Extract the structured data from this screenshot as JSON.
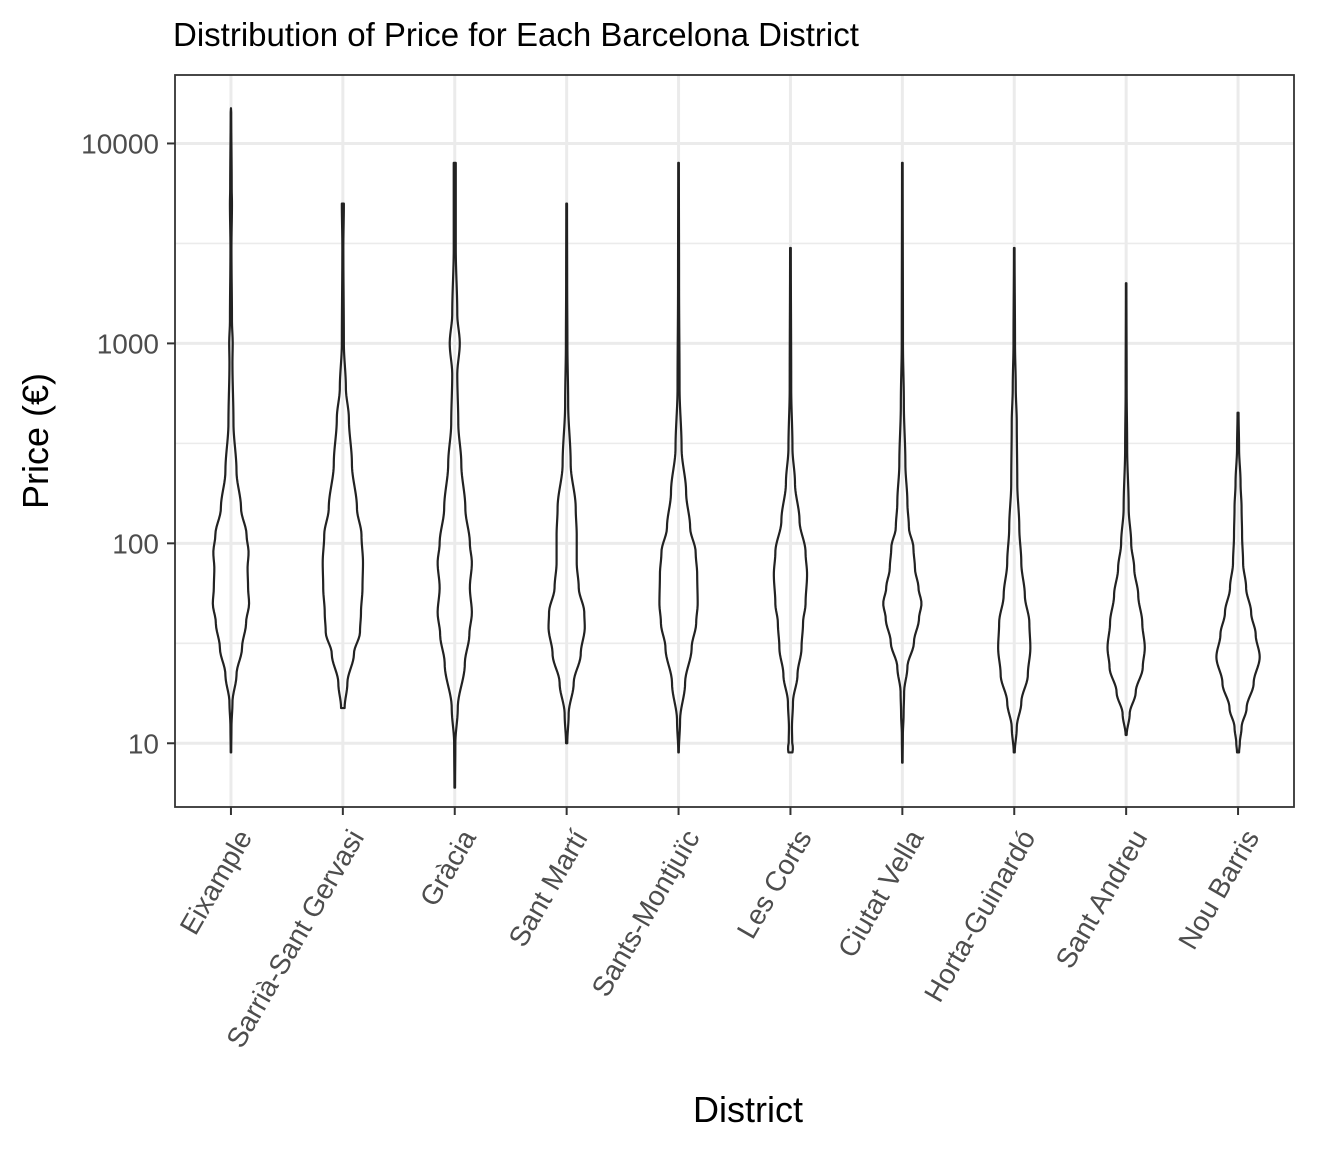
{
  "chart_data": {
    "type": "violin",
    "title": "Distribution of Price for Each Barcelona District",
    "xlabel": "District",
    "ylabel": "Price (€)",
    "y_scale": "log10",
    "ylim": [
      4.8,
      22000
    ],
    "y_ticks": [
      {
        "value": 10,
        "label": "10"
      },
      {
        "value": 100,
        "label": "100"
      },
      {
        "value": 1000,
        "label": "1000"
      },
      {
        "value": 10000,
        "label": "10000"
      }
    ],
    "grid": true,
    "categories": [
      "Eixample",
      "Sarrià-Sant Gervasi",
      "Gràcia",
      "Sant Martí",
      "Sants-Montjuïc",
      "Les Corts",
      "Ciutat Vella",
      "Horta-Guinardó",
      "Sant Andreu",
      "Nou Barris"
    ],
    "series": [
      {
        "category": "Eixample",
        "min": 9,
        "max": 15000,
        "profile": [
          [
            9,
            0.005
          ],
          [
            12,
            0.01
          ],
          [
            16,
            0.03
          ],
          [
            22,
            0.11
          ],
          [
            30,
            0.22
          ],
          [
            40,
            0.3
          ],
          [
            50,
            0.36
          ],
          [
            60,
            0.34
          ],
          [
            75,
            0.33
          ],
          [
            90,
            0.35
          ],
          [
            110,
            0.31
          ],
          [
            150,
            0.2
          ],
          [
            230,
            0.11
          ],
          [
            400,
            0.05
          ],
          [
            800,
            0.03
          ],
          [
            1000,
            0.035
          ],
          [
            1300,
            0.02
          ],
          [
            3000,
            0.01
          ],
          [
            5000,
            0.02
          ],
          [
            6000,
            0.015
          ],
          [
            15000,
            0.005
          ]
        ]
      },
      {
        "category": "Sarrià-Sant Gervasi",
        "min": 15,
        "max": 5000,
        "profile": [
          [
            15,
            0.035
          ],
          [
            20,
            0.09
          ],
          [
            28,
            0.22
          ],
          [
            36,
            0.34
          ],
          [
            45,
            0.36
          ],
          [
            60,
            0.39
          ],
          [
            80,
            0.4
          ],
          [
            110,
            0.37
          ],
          [
            150,
            0.28
          ],
          [
            250,
            0.18
          ],
          [
            420,
            0.12
          ],
          [
            600,
            0.06
          ],
          [
            1000,
            0.02
          ],
          [
            3000,
            0.01
          ],
          [
            5000,
            0.02
          ]
        ]
      },
      {
        "category": "Gràcia",
        "min": 6,
        "max": 8000,
        "profile": [
          [
            6,
            0.006
          ],
          [
            10,
            0.012
          ],
          [
            15,
            0.06
          ],
          [
            25,
            0.2
          ],
          [
            35,
            0.29
          ],
          [
            45,
            0.34
          ],
          [
            60,
            0.3
          ],
          [
            80,
            0.34
          ],
          [
            100,
            0.3
          ],
          [
            150,
            0.21
          ],
          [
            250,
            0.13
          ],
          [
            400,
            0.07
          ],
          [
            700,
            0.05
          ],
          [
            1000,
            0.1
          ],
          [
            1400,
            0.05
          ],
          [
            3000,
            0.02
          ],
          [
            8000,
            0.02
          ]
        ]
      },
      {
        "category": "Sant Martí",
        "min": 10,
        "max": 5000,
        "profile": [
          [
            10,
            0.012
          ],
          [
            14,
            0.04
          ],
          [
            20,
            0.14
          ],
          [
            28,
            0.28
          ],
          [
            38,
            0.36
          ],
          [
            45,
            0.35
          ],
          [
            60,
            0.24
          ],
          [
            80,
            0.2
          ],
          [
            110,
            0.2
          ],
          [
            150,
            0.18
          ],
          [
            250,
            0.08
          ],
          [
            500,
            0.03
          ],
          [
            1000,
            0.015
          ],
          [
            2000,
            0.01
          ],
          [
            5000,
            0.007
          ]
        ]
      },
      {
        "category": "Sants-Montjuïc",
        "min": 9,
        "max": 8000,
        "profile": [
          [
            9,
            0.005
          ],
          [
            13,
            0.03
          ],
          [
            20,
            0.13
          ],
          [
            30,
            0.26
          ],
          [
            40,
            0.35
          ],
          [
            50,
            0.38
          ],
          [
            70,
            0.37
          ],
          [
            90,
            0.34
          ],
          [
            120,
            0.23
          ],
          [
            180,
            0.15
          ],
          [
            300,
            0.06
          ],
          [
            600,
            0.02
          ],
          [
            2000,
            0.01
          ],
          [
            8000,
            0.006
          ]
        ]
      },
      {
        "category": "Les Corts",
        "min": 9,
        "max": 3000,
        "profile": [
          [
            9,
            0.04
          ],
          [
            9.5,
            0.05
          ],
          [
            10,
            0.035
          ],
          [
            12,
            0.03
          ],
          [
            16,
            0.05
          ],
          [
            22,
            0.14
          ],
          [
            30,
            0.22
          ],
          [
            40,
            0.25
          ],
          [
            50,
            0.3
          ],
          [
            70,
            0.33
          ],
          [
            90,
            0.3
          ],
          [
            130,
            0.18
          ],
          [
            200,
            0.09
          ],
          [
            300,
            0.04
          ],
          [
            600,
            0.015
          ],
          [
            3000,
            0.007
          ]
        ]
      },
      {
        "category": "Ciutat Vella",
        "min": 8,
        "max": 8000,
        "profile": [
          [
            8,
            0.005
          ],
          [
            11,
            0.01
          ],
          [
            14,
            0.025
          ],
          [
            18,
            0.035
          ],
          [
            24,
            0.1
          ],
          [
            32,
            0.23
          ],
          [
            42,
            0.33
          ],
          [
            50,
            0.38
          ],
          [
            60,
            0.32
          ],
          [
            75,
            0.25
          ],
          [
            95,
            0.22
          ],
          [
            120,
            0.13
          ],
          [
            160,
            0.1
          ],
          [
            250,
            0.06
          ],
          [
            500,
            0.03
          ],
          [
            1000,
            0.012
          ],
          [
            8000,
            0.006
          ]
        ]
      },
      {
        "category": "Horta-Guinardó",
        "min": 9,
        "max": 3000,
        "profile": [
          [
            9,
            0.01
          ],
          [
            12,
            0.05
          ],
          [
            16,
            0.14
          ],
          [
            22,
            0.27
          ],
          [
            30,
            0.32
          ],
          [
            40,
            0.3
          ],
          [
            55,
            0.21
          ],
          [
            80,
            0.14
          ],
          [
            120,
            0.1
          ],
          [
            200,
            0.06
          ],
          [
            400,
            0.05
          ],
          [
            600,
            0.03
          ],
          [
            1000,
            0.015
          ],
          [
            3000,
            0.006
          ]
        ]
      },
      {
        "category": "Sant Andreu",
        "min": 11,
        "max": 2000,
        "profile": [
          [
            11,
            0.01
          ],
          [
            14,
            0.07
          ],
          [
            18,
            0.19
          ],
          [
            24,
            0.33
          ],
          [
            30,
            0.37
          ],
          [
            40,
            0.32
          ],
          [
            55,
            0.24
          ],
          [
            75,
            0.16
          ],
          [
            100,
            0.1
          ],
          [
            150,
            0.05
          ],
          [
            300,
            0.02
          ],
          [
            600,
            0.01
          ],
          [
            2000,
            0.005
          ]
        ]
      },
      {
        "category": "Nou Barris",
        "min": 9,
        "max": 450,
        "profile": [
          [
            9,
            0.02
          ],
          [
            10,
            0.035
          ],
          [
            12,
            0.07
          ],
          [
            15,
            0.17
          ],
          [
            20,
            0.31
          ],
          [
            27,
            0.43
          ],
          [
            35,
            0.35
          ],
          [
            45,
            0.26
          ],
          [
            60,
            0.16
          ],
          [
            80,
            0.1
          ],
          [
            110,
            0.08
          ],
          [
            150,
            0.07
          ],
          [
            200,
            0.05
          ],
          [
            300,
            0.02
          ],
          [
            450,
            0.01
          ]
        ]
      }
    ]
  }
}
